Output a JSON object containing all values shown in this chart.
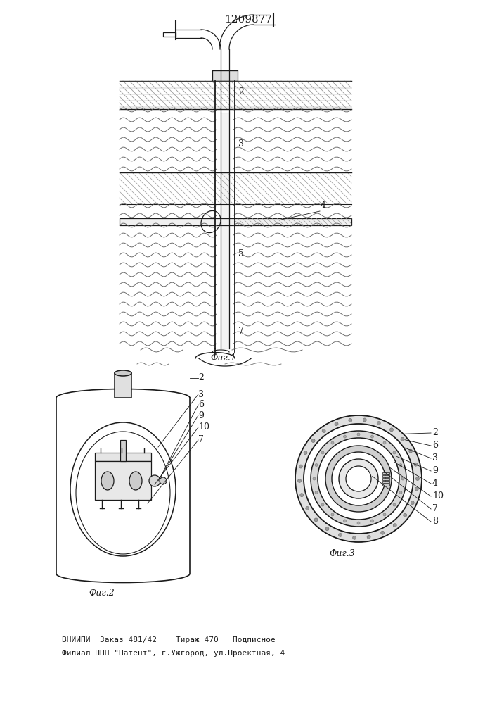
{
  "title": "1209877",
  "title_fontsize": 11,
  "footer_line1": "ВНИИПИ  Заказ 481/42    Тираж 470   Подписное",
  "footer_line2": "Филиал ППП \"Патент\", г.Ужгород, ул.Проектная, 4",
  "fig1_caption": "Фиг.1",
  "fig2_caption": "Фиг.2",
  "fig3_caption": "Фиг.3",
  "bg_color": "#ffffff",
  "line_color": "#1a1a1a",
  "fig_width": 7.07,
  "fig_height": 10.0
}
